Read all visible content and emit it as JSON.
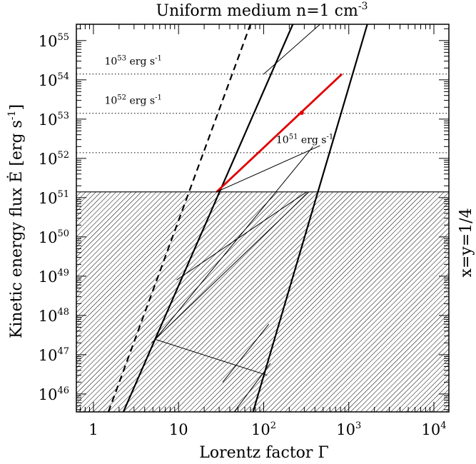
{
  "chart_data": {
    "type": "line",
    "title": "Uniform medium n=1 cm",
    "title_sup": "-3",
    "xlabel": "Lorentz factor Γ",
    "ylabel": "Kinetic energy flux Ė [erg s",
    "ylabel_sup": "-1",
    "ylabel_close": "]",
    "side_label": "x=y=1/4",
    "x_scale": "log",
    "y_scale": "log",
    "xlim": [
      0.63,
      15000
    ],
    "ylim": [
      3.5e+45,
      2.6e+55
    ],
    "x_ticks": [
      {
        "value": 1,
        "base": "1",
        "exp": ""
      },
      {
        "value": 10,
        "base": "10",
        "exp": ""
      },
      {
        "value": 100,
        "base": "10",
        "exp": "2"
      },
      {
        "value": 1000,
        "base": "10",
        "exp": "3"
      },
      {
        "value": 10000,
        "base": "10",
        "exp": "4"
      }
    ],
    "y_ticks": [
      {
        "value": 1e+46,
        "base": "10",
        "exp": "46"
      },
      {
        "value": 1e+47,
        "base": "10",
        "exp": "47"
      },
      {
        "value": 1e+48,
        "base": "10",
        "exp": "48"
      },
      {
        "value": 1e+49,
        "base": "10",
        "exp": "49"
      },
      {
        "value": 1e+50,
        "base": "10",
        "exp": "50"
      },
      {
        "value": 1e+51,
        "base": "10",
        "exp": "51"
      },
      {
        "value": 1e+52,
        "base": "10",
        "exp": "52"
      },
      {
        "value": 1e+53,
        "base": "10",
        "exp": "53"
      },
      {
        "value": 1e+54,
        "base": "10",
        "exp": "54"
      },
      {
        "value": 1e+55,
        "base": "10",
        "exp": "55"
      }
    ],
    "hatched_region": {
      "y_max": 1.4e+51
    },
    "horizontal_levels": [
      {
        "y": 1.4e+54,
        "label_base": "10",
        "label_exp": "53",
        "label_unit": " erg s",
        "label_unit_exp": "-1",
        "label_x": 1.35,
        "label_y": 3e+54
      },
      {
        "y": 1.4e+53,
        "label_base": "10",
        "label_exp": "52",
        "label_unit": " erg s",
        "label_unit_exp": "-1",
        "label_x": 1.35,
        "label_y": 3e+53
      },
      {
        "y": 1.4e+52,
        "label_base": "10",
        "label_exp": "51",
        "label_unit": " erg s",
        "label_unit_exp": "-1",
        "label_x": 140,
        "label_y": 3e+52
      }
    ],
    "series": [
      {
        "style": "dashed-thick",
        "points": [
          [
            1.5,
            3.5e+45
          ],
          [
            70,
            2.6e+55
          ]
        ]
      },
      {
        "style": "thick",
        "points": [
          [
            2.25,
            3.5e+45
          ],
          [
            220,
            2.6e+55
          ]
        ]
      },
      {
        "style": "thick",
        "points": [
          [
            75,
            3.5e+45
          ],
          [
            1650,
            2.6e+55
          ]
        ]
      },
      {
        "style": "red-thick",
        "points": [
          [
            28,
            1.4e+51
          ],
          [
            830,
            1.4e+54
          ]
        ]
      },
      {
        "style": "thin",
        "points": [
          [
            100,
            1.4e+54
          ],
          [
            460,
            2.6e+55
          ]
        ]
      },
      {
        "style": "thin",
        "points": [
          [
            5.5,
            2.7e+47
          ],
          [
            380,
            2e+52
          ]
        ]
      },
      {
        "style": "thin",
        "points": [
          [
            9.5,
            8e+48
          ],
          [
            320,
            1.4e+51
          ]
        ]
      },
      {
        "style": "thin",
        "points": [
          [
            4.8,
            2e+47
          ],
          [
            340,
            1.4e+51
          ]
        ]
      },
      {
        "style": "thin",
        "points": [
          [
            28,
            1.4e+51
          ],
          [
            460,
            2.1e+52
          ]
        ]
      },
      {
        "style": "thin",
        "points": [
          [
            5.2,
            2.5e+47
          ],
          [
            110,
            3e+46
          ]
        ]
      },
      {
        "style": "thin",
        "points": [
          [
            33,
            2e+46
          ],
          [
            115,
            6e+47
          ]
        ]
      },
      {
        "style": "thin",
        "points": [
          [
            45,
            3.5e+45
          ],
          [
            120,
            6e+46
          ]
        ]
      }
    ],
    "marker": {
      "x": 280,
      "y": 1.45e+53,
      "color": "#e00000"
    },
    "colors": {
      "highlight": "#e00000",
      "ink": "#000000"
    }
  }
}
